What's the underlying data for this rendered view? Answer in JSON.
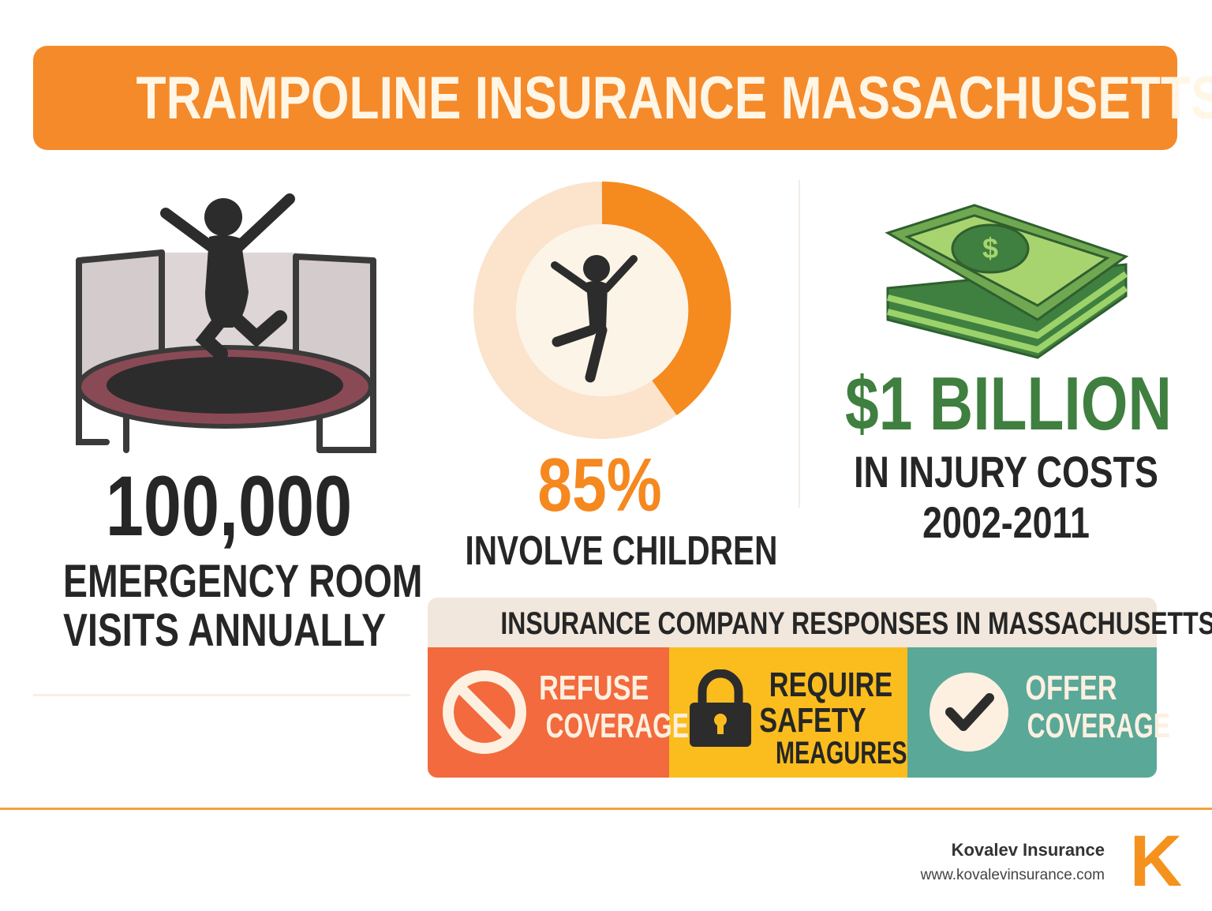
{
  "header": {
    "title": "TRAMPOLINE INSURANCE MASSACHUSETTS"
  },
  "stats": [
    {
      "value": "100,000",
      "label_lines": [
        "EMERGENCY ROOM",
        "VISITS ANNUALLY"
      ]
    },
    {
      "value": "85%",
      "label_lines": [
        "INVOLVE CHILDREN"
      ]
    },
    {
      "value": "$1 BILLION",
      "label_lines": [
        "IN INJURY COSTS",
        "2002-2011"
      ]
    }
  ],
  "responses": {
    "title": "INSURANCE COMPANY RESPONSES IN MASSACHUSETTS",
    "items": [
      {
        "lines": [
          "REFUSE",
          "COVERAGE"
        ]
      },
      {
        "lines": [
          "REQUIRE",
          "SAFETY",
          "MEAGURES"
        ]
      },
      {
        "lines": [
          "OFFER",
          "COVERAGE"
        ]
      }
    ]
  },
  "footer": {
    "company": "Kovalev Insurance",
    "url": "www.kovalevinsurance.com",
    "logo": "K"
  }
}
